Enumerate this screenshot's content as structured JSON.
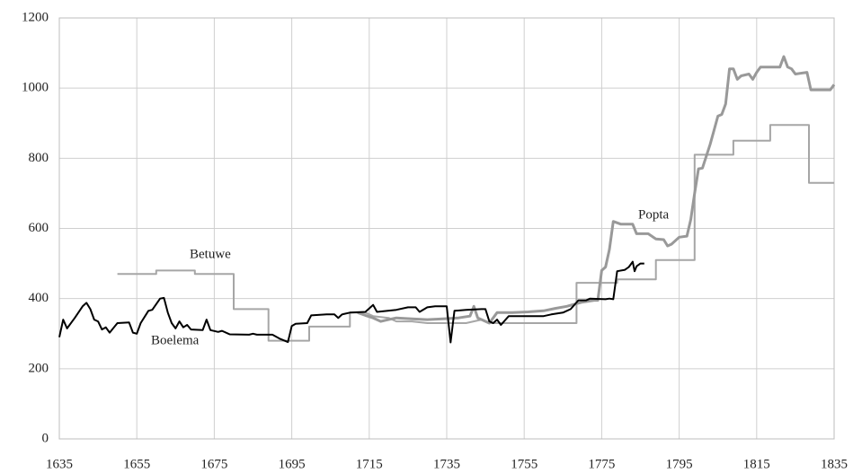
{
  "chart_data": {
    "type": "line",
    "xlim": [
      1635,
      1835
    ],
    "xticks": [
      1635,
      1655,
      1675,
      1695,
      1715,
      1735,
      1755,
      1775,
      1795,
      1815,
      1835
    ],
    "ylim": [
      0,
      1200
    ],
    "yticks": [
      0,
      200,
      400,
      600,
      800,
      1000,
      1200
    ],
    "grid": true,
    "series": [
      {
        "name": "Betuwe",
        "color": "#a6a6a6",
        "width": 2,
        "x": [
          1650,
          1660,
          1660,
          1670,
          1670,
          1680,
          1680,
          1689,
          1689,
          1699.5,
          1699.5,
          1710,
          1710,
          1714,
          1716,
          1720,
          1722,
          1726,
          1730,
          1740,
          1744,
          1746,
          1750,
          1768.5,
          1768.5,
          1779,
          1779,
          1789,
          1789,
          1799,
          1799,
          1809,
          1809,
          1818.5,
          1818.5,
          1828.5,
          1828.5,
          1835
        ],
        "values": [
          470,
          470,
          480,
          480,
          470,
          470,
          370,
          370,
          280,
          280,
          320,
          320,
          360,
          360,
          350,
          345,
          335,
          335,
          330,
          330,
          340,
          330,
          330,
          330,
          445,
          445,
          455,
          455,
          510,
          510,
          810,
          810,
          850,
          850,
          895,
          895,
          730,
          730
        ]
      },
      {
        "name": "Popta",
        "color": "#999999",
        "width": 3,
        "x": [
          1712,
          1714,
          1716,
          1718,
          1720,
          1722,
          1726,
          1730,
          1734,
          1738,
          1741,
          1742,
          1743,
          1744,
          1746,
          1748,
          1752,
          1756,
          1760,
          1763,
          1766,
          1770,
          1773,
          1774,
          1775,
          1776,
          1777,
          1778,
          1780,
          1783,
          1784,
          1787,
          1789,
          1791,
          1792,
          1793,
          1795,
          1797,
          1798,
          1799,
          1800,
          1801,
          1803,
          1804,
          1805,
          1806,
          1807,
          1808,
          1809,
          1810,
          1811,
          1813,
          1814,
          1815,
          1816,
          1820,
          1821,
          1822,
          1823,
          1824,
          1825,
          1828,
          1829,
          1834,
          1835
        ],
        "values": [
          360,
          352,
          345,
          335,
          340,
          345,
          342,
          340,
          342,
          345,
          350,
          378,
          345,
          340,
          330,
          360,
          360,
          362,
          365,
          372,
          378,
          390,
          395,
          395,
          480,
          490,
          540,
          620,
          612,
          612,
          585,
          585,
          570,
          568,
          550,
          555,
          575,
          578,
          625,
          700,
          770,
          772,
          840,
          880,
          920,
          925,
          955,
          1055,
          1055,
          1025,
          1035,
          1040,
          1025,
          1045,
          1060,
          1060,
          1060,
          1090,
          1060,
          1055,
          1040,
          1045,
          995,
          995,
          1010
        ]
      },
      {
        "name": "Boelema",
        "color": "#000000",
        "width": 2,
        "x": [
          1635,
          1636,
          1637,
          1639,
          1641,
          1642,
          1643,
          1644,
          1645,
          1646,
          1647,
          1648,
          1650,
          1653,
          1654,
          1655,
          1656,
          1658,
          1659,
          1661,
          1662,
          1663,
          1664,
          1665,
          1666,
          1667,
          1668,
          1669,
          1672,
          1673,
          1674,
          1676,
          1677,
          1679,
          1684,
          1685,
          1686,
          1690,
          1692,
          1694,
          1695,
          1696,
          1699,
          1700,
          1704,
          1706,
          1707,
          1708,
          1710,
          1714,
          1715,
          1716,
          1717,
          1722,
          1725,
          1727,
          1728,
          1730,
          1732,
          1735,
          1736,
          1737,
          1740,
          1744,
          1745,
          1746,
          1747,
          1748,
          1749,
          1751,
          1760,
          1762,
          1765,
          1767,
          1769,
          1771,
          1772,
          1776,
          1777,
          1778,
          1779,
          1781,
          1782,
          1783,
          1783.5,
          1784,
          1785,
          1786
        ],
        "values": [
          290,
          340,
          315,
          345,
          378,
          388,
          370,
          340,
          335,
          312,
          318,
          303,
          330,
          332,
          303,
          300,
          330,
          365,
          368,
          400,
          402,
          360,
          330,
          315,
          335,
          318,
          325,
          312,
          310,
          340,
          310,
          305,
          308,
          298,
          297,
          300,
          297,
          297,
          285,
          276,
          322,
          328,
          330,
          352,
          355,
          355,
          345,
          355,
          360,
          362,
          372,
          382,
          362,
          368,
          375,
          375,
          362,
          375,
          378,
          378,
          275,
          365,
          368,
          370,
          370,
          335,
          330,
          340,
          325,
          350,
          350,
          355,
          360,
          370,
          395,
          395,
          400,
          398,
          400,
          398,
          478,
          482,
          490,
          505,
          478,
          492,
          500,
          500
        ]
      }
    ]
  }
}
